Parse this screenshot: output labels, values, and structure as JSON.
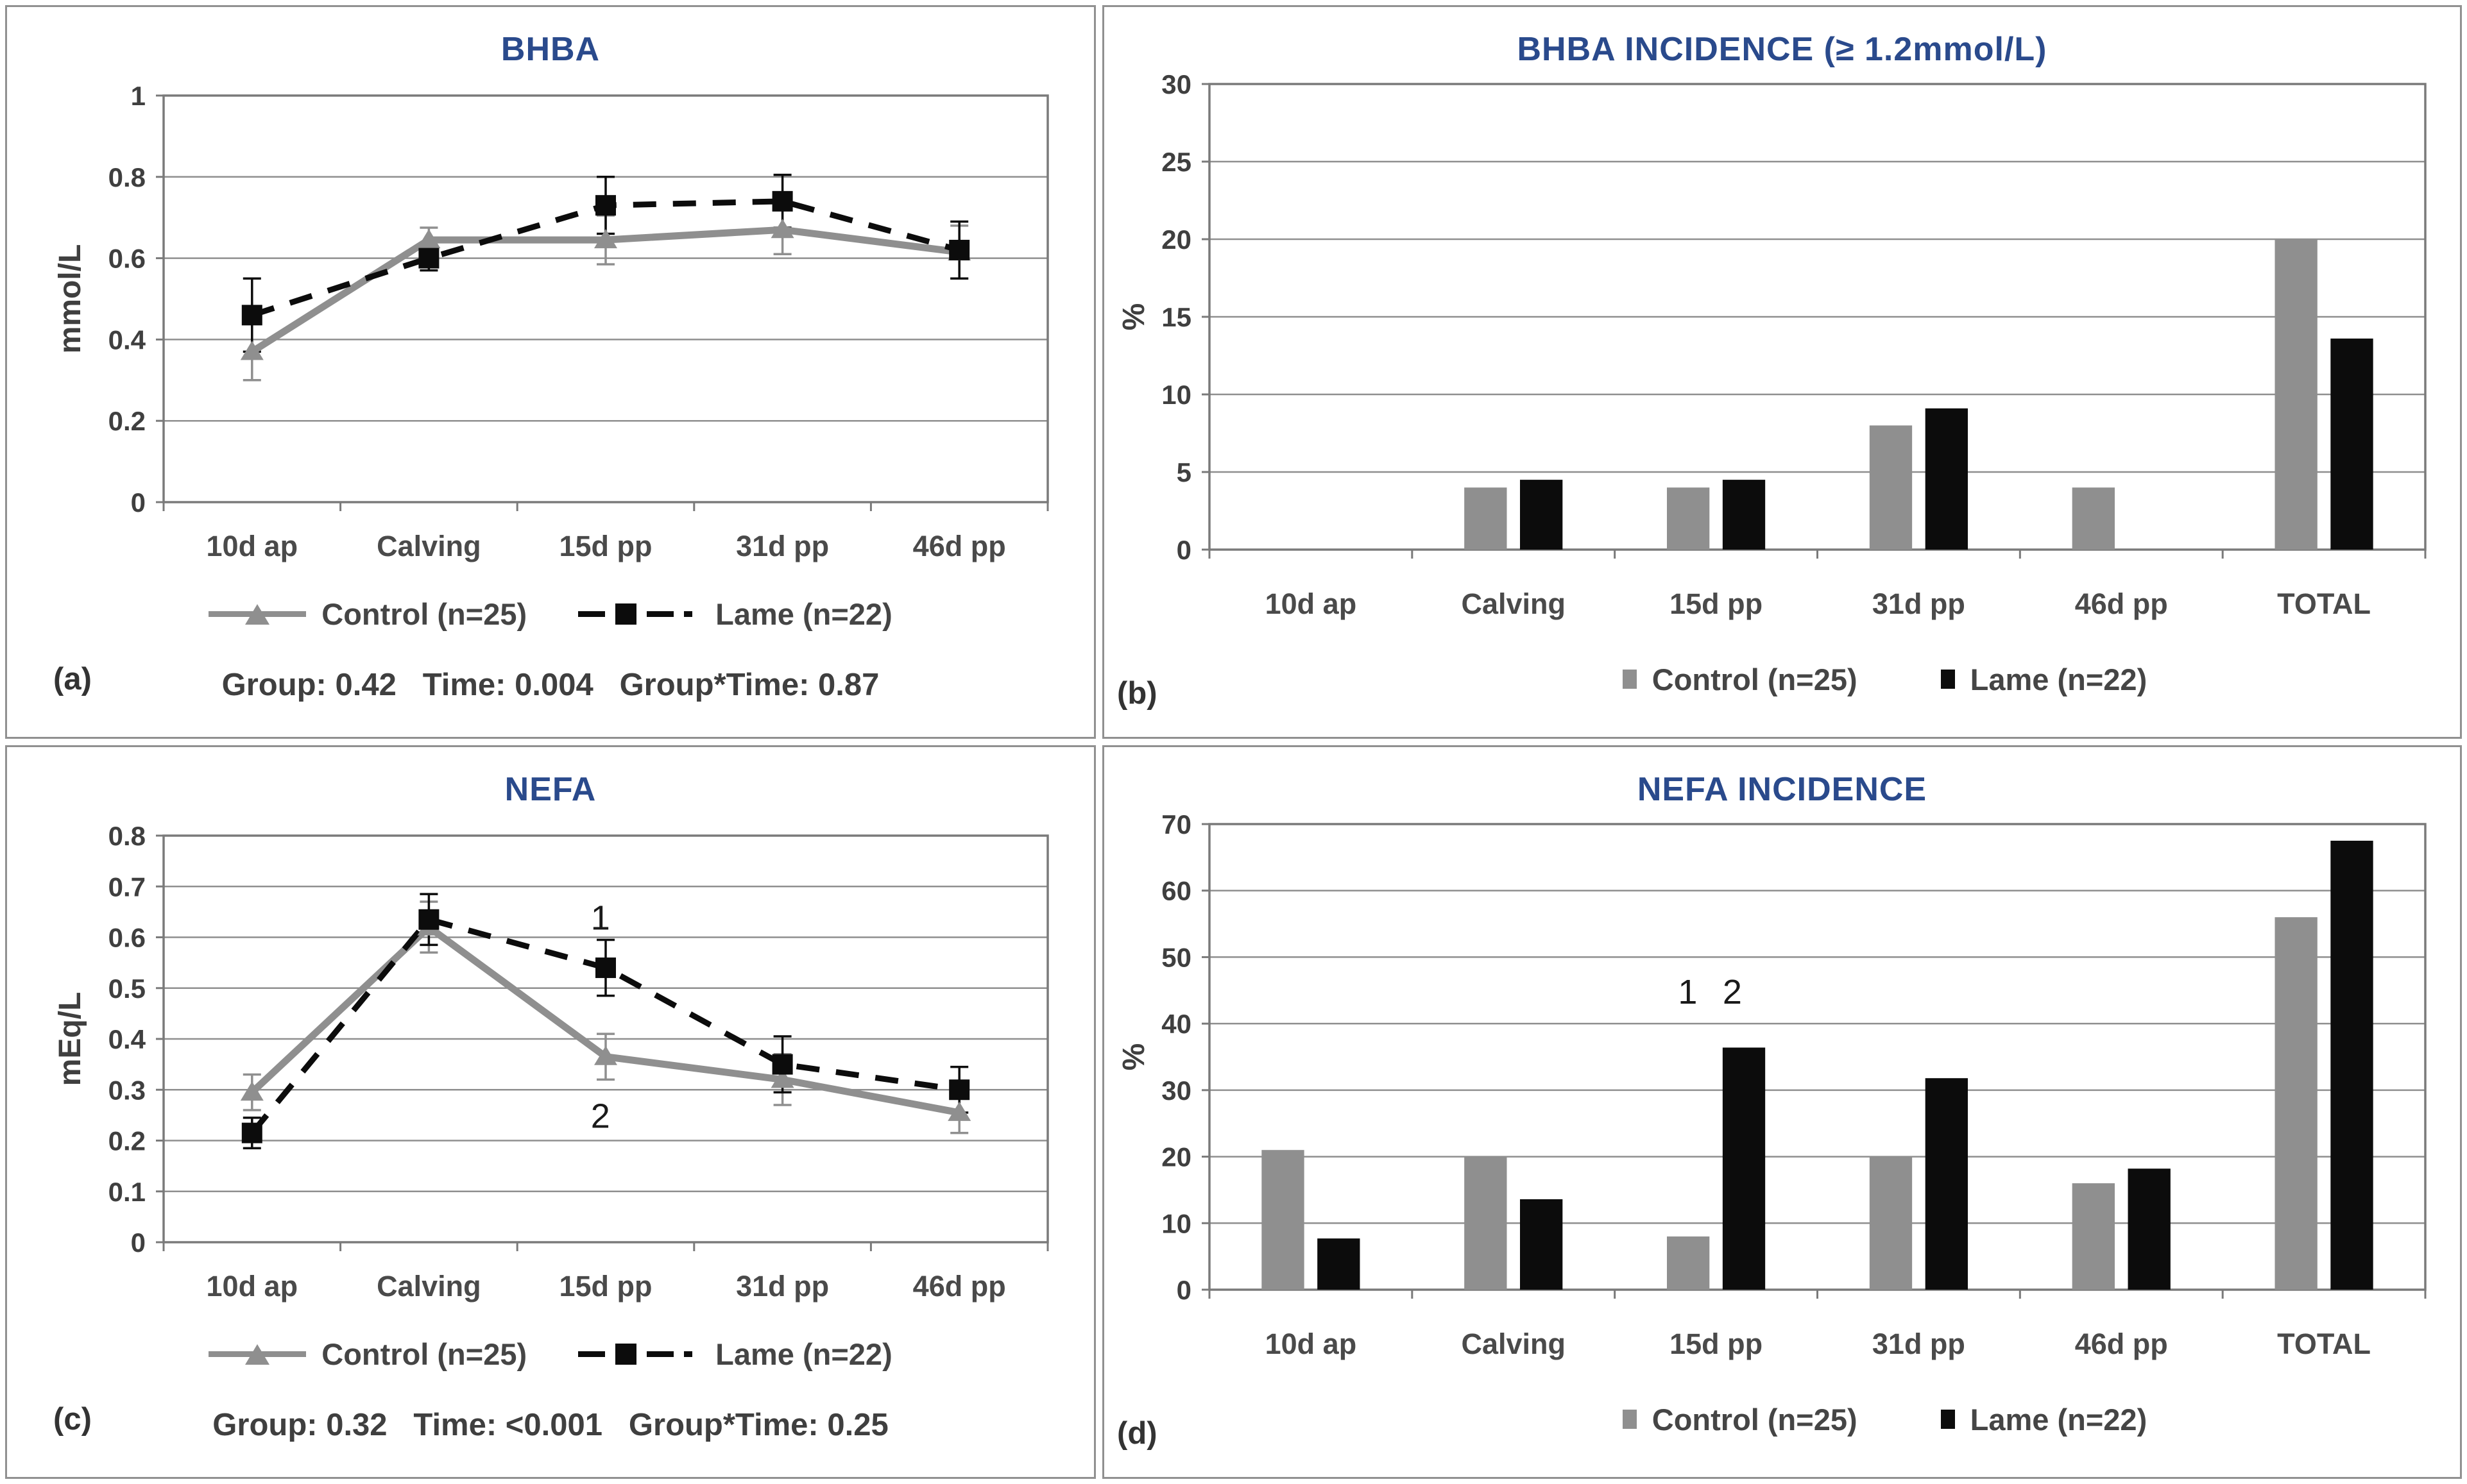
{
  "colors": {
    "title_blue": "#2a4a8c",
    "control_gray": "#8f8f8f",
    "lame_black": "#0c0c0c",
    "grid_gray": "#8f8f8f",
    "box_gray": "#7a7a7a",
    "tick_text": "#3f3f3f",
    "label_text": "#4a4a4a",
    "annotation_text": "#1a1a1a"
  },
  "chart_data": [
    {
      "id": "a",
      "type": "line",
      "panel_label": "(a)",
      "title": "BHBA",
      "ylabel": "mmol/L",
      "ylim": [
        0,
        1
      ],
      "yticks": [
        0,
        0.2,
        0.4,
        0.6,
        0.8,
        1
      ],
      "grid": true,
      "legend_position": "bottom",
      "categories": [
        "10d ap",
        "Calving",
        "15d pp",
        "31d pp",
        "46d pp"
      ],
      "series": [
        {
          "name": "Control (n=25)",
          "role": "control",
          "values": [
            0.37,
            0.645,
            0.645,
            0.67,
            0.615
          ],
          "errors": [
            0.07,
            0.03,
            0.06,
            0.06,
            0.065
          ]
        },
        {
          "name": "Lame (n=22)",
          "role": "lame",
          "values": [
            0.46,
            0.6,
            0.73,
            0.74,
            0.62
          ],
          "errors": [
            0.09,
            0.03,
            0.07,
            0.065,
            0.07
          ]
        }
      ],
      "stats": "Group: 0.42   Time: 0.004   Group*Time: 0.87"
    },
    {
      "id": "b",
      "type": "bar",
      "panel_label": "(b)",
      "title": "BHBA INCIDENCE (≥ 1.2mmol/L)",
      "ylabel": "%",
      "ylim": [
        0,
        30
      ],
      "yticks": [
        0,
        5,
        10,
        15,
        20,
        25,
        30
      ],
      "grid": true,
      "legend_position": "bottom",
      "categories": [
        "10d ap",
        "Calving",
        "15d pp",
        "31d pp",
        "46d pp",
        "TOTAL"
      ],
      "series": [
        {
          "name": "Control (n=25)",
          "role": "control",
          "values": [
            0,
            4,
            4,
            8,
            4,
            20
          ]
        },
        {
          "name": "Lame (n=22)",
          "role": "lame",
          "values": [
            0,
            4.5,
            4.5,
            9.1,
            0,
            13.6
          ]
        }
      ]
    },
    {
      "id": "c",
      "type": "line",
      "panel_label": "(c)",
      "title": "NEFA",
      "ylabel": "mEq/L",
      "ylim": [
        0,
        0.8
      ],
      "yticks": [
        0,
        0.1,
        0.2,
        0.3,
        0.4,
        0.5,
        0.6,
        0.7,
        0.8
      ],
      "grid": true,
      "legend_position": "bottom",
      "categories": [
        "10d ap",
        "Calving",
        "15d pp",
        "31d pp",
        "46d pp"
      ],
      "series": [
        {
          "name": "Control (n=25)",
          "role": "control",
          "values": [
            0.295,
            0.62,
            0.365,
            0.32,
            0.255
          ],
          "errors": [
            0.035,
            0.05,
            0.045,
            0.05,
            0.04
          ]
        },
        {
          "name": "Lame (n=22)",
          "role": "lame",
          "values": [
            0.215,
            0.635,
            0.54,
            0.35,
            0.3
          ],
          "errors": [
            0.03,
            0.05,
            0.055,
            0.055,
            0.045
          ]
        }
      ],
      "annotations": [
        {
          "text": "1",
          "cat": 2,
          "dx": -0.03,
          "y": 0.615
        },
        {
          "text": "2",
          "cat": 2,
          "dx": -0.03,
          "y": 0.225
        }
      ],
      "stats": "Group: 0.32   Time: <0.001   Group*Time: 0.25"
    },
    {
      "id": "d",
      "type": "bar",
      "panel_label": "(d)",
      "title": "NEFA INCIDENCE",
      "ylabel": "%",
      "ylim": [
        0,
        70
      ],
      "yticks": [
        0,
        10,
        20,
        30,
        40,
        50,
        60,
        70
      ],
      "grid": true,
      "legend_position": "bottom",
      "categories": [
        "10d ap",
        "Calving",
        "15d pp",
        "31d pp",
        "46d pp",
        "TOTAL"
      ],
      "series": [
        {
          "name": "Control (n=25)",
          "role": "control",
          "values": [
            21,
            20,
            8,
            20,
            16,
            56
          ]
        },
        {
          "name": "Lame (n=22)",
          "role": "lame",
          "values": [
            7.7,
            13.6,
            36.4,
            31.8,
            18.2,
            67.5
          ]
        }
      ],
      "annotations": [
        {
          "text": "1",
          "cat": 2,
          "dx": -0.14,
          "y": 43
        },
        {
          "text": "2",
          "cat": 2,
          "dx": 0.08,
          "y": 43
        }
      ]
    }
  ]
}
